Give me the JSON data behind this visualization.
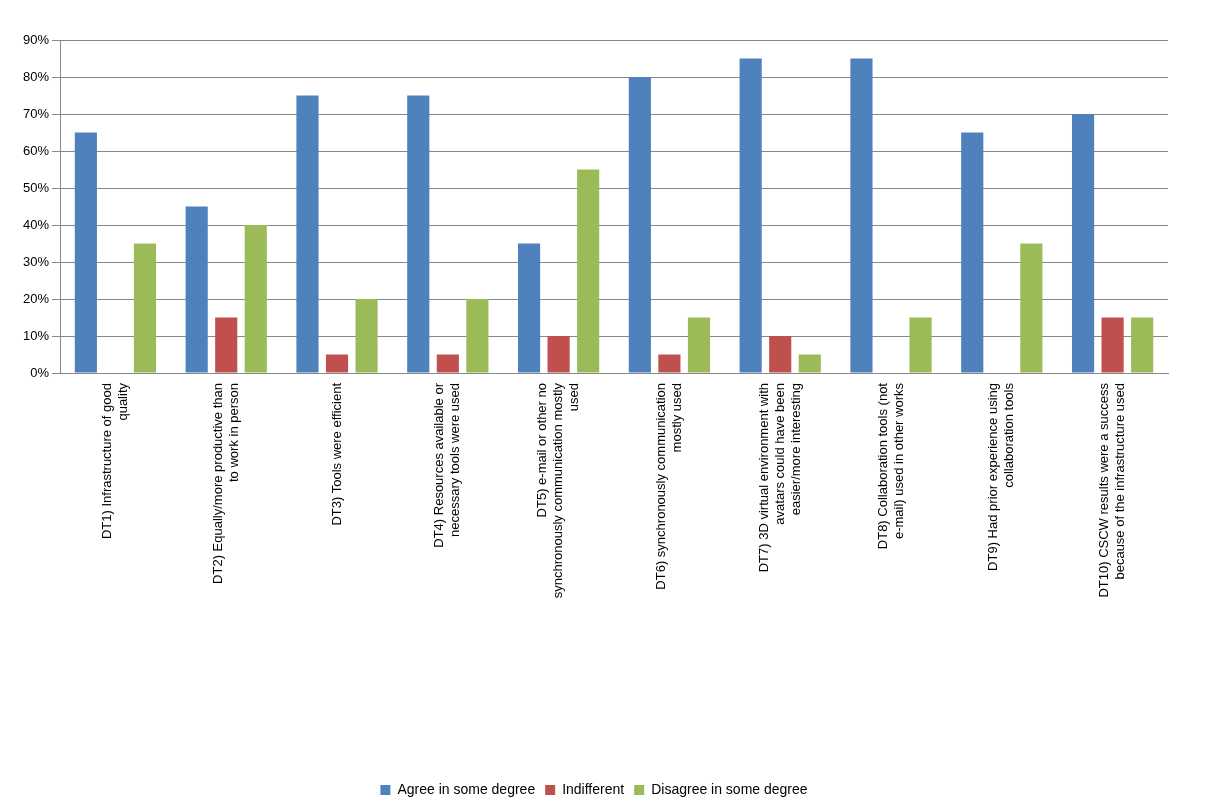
{
  "chart_data": {
    "type": "bar",
    "categories": [
      "DT1) Infrastructure of good quality",
      "DT2) Equally/more productive than to work in person",
      "DT3) Tools were efficient",
      "DT4) Resources available or necessary tools were used",
      "DT5) e-mail or other no synchronously communication mostly used",
      "DT6) synchronously communication mostly used",
      "DT7) 3D virtual environment with avatars could have been easier/more interesting",
      "DT8) Collaboration tools (not e-mail) used in other works",
      "DT9) Had prior experience using collaboration tools",
      "DT10) CSCW results were a success because of the infrastructure used"
    ],
    "series": [
      {
        "name": "Agree in some degree",
        "color": "#4f81bd",
        "values": [
          65,
          45,
          75,
          75,
          35,
          80,
          85,
          85,
          65,
          70
        ]
      },
      {
        "name": "Indifferent",
        "color": "#c0504d",
        "values": [
          0,
          15,
          5,
          5,
          10,
          5,
          10,
          0,
          0,
          15
        ]
      },
      {
        "name": "Disagree in some degree",
        "color": "#9bbb59",
        "values": [
          35,
          40,
          20,
          20,
          55,
          15,
          5,
          15,
          35,
          15
        ]
      }
    ],
    "ylim": [
      0,
      90
    ],
    "yticks": [
      {
        "value": 0,
        "label": "0%"
      },
      {
        "value": 10,
        "label": "10%"
      },
      {
        "value": 20,
        "label": "20%"
      },
      {
        "value": 30,
        "label": "30%"
      },
      {
        "value": 40,
        "label": "40%"
      },
      {
        "value": 50,
        "label": "50%"
      },
      {
        "value": 60,
        "label": "60%"
      },
      {
        "value": 70,
        "label": "70%"
      },
      {
        "value": 80,
        "label": "80%"
      },
      {
        "value": 90,
        "label": "90%"
      }
    ],
    "grid": "y",
    "legend": "bottom"
  }
}
